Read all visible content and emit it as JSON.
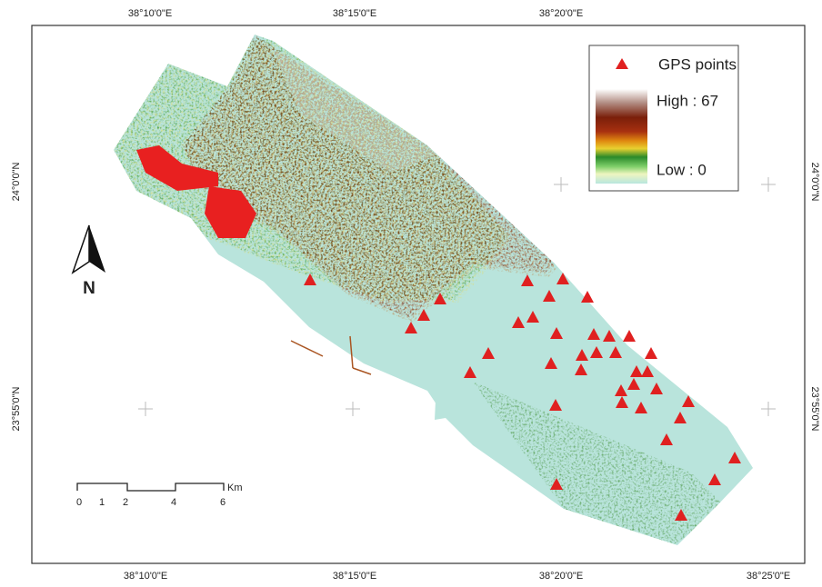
{
  "map": {
    "top_labels": [
      "38°10'0\"E",
      "38°15'0\"E",
      "38°20'0\"E"
    ],
    "bottom_labels": [
      "38°10'0\"E",
      "38°15'0\"E",
      "38°20'0\"E",
      "38°25'0\"E"
    ],
    "left_labels": [
      "24°0'0\"N",
      "23°55'0\"N"
    ],
    "right_labels": [
      "24°0'0\"N",
      "23°55'0\"N"
    ],
    "legend": {
      "points": "GPS points",
      "high": "High : 67",
      "low": "Low : 0"
    },
    "north": "N",
    "scale": {
      "ticks": [
        "0",
        "1",
        "2",
        "4",
        "6"
      ],
      "unit": "Km"
    }
  }
}
